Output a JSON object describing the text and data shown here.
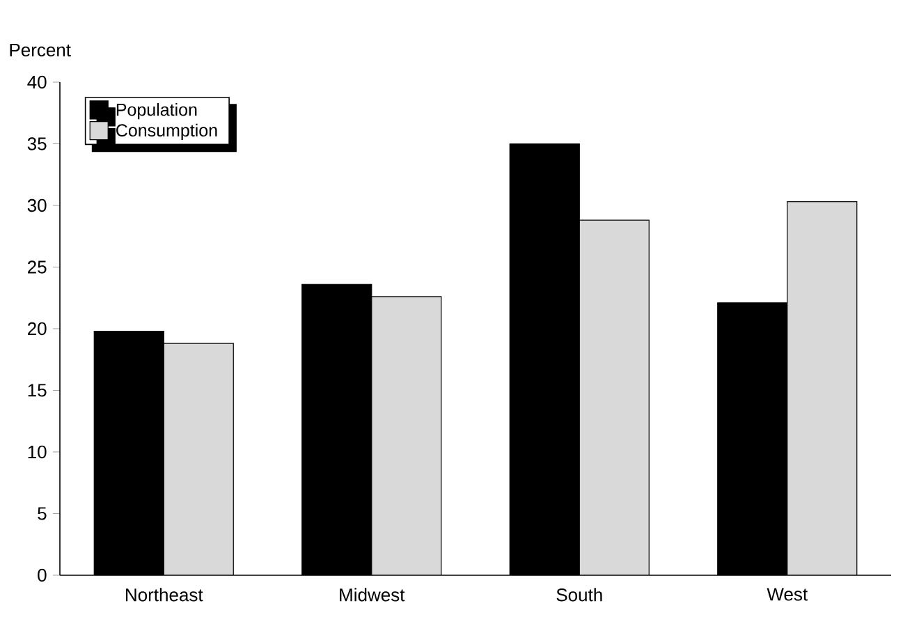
{
  "chart_data": {
    "type": "bar",
    "ylabel": "Percent",
    "categories": [
      "Northeast",
      "Midwest",
      "South",
      "West"
    ],
    "series": [
      {
        "name": "Population",
        "color": "#000000",
        "values": [
          19.8,
          23.6,
          35.0,
          22.1
        ]
      },
      {
        "name": "Consumption",
        "color": "#d9d9d9",
        "values": [
          18.8,
          22.6,
          28.8,
          30.3
        ]
      }
    ],
    "ylim": [
      0,
      40
    ],
    "yticks": [
      0,
      5,
      10,
      15,
      20,
      25,
      30,
      35,
      40
    ],
    "grid": false,
    "legend": "top left"
  }
}
